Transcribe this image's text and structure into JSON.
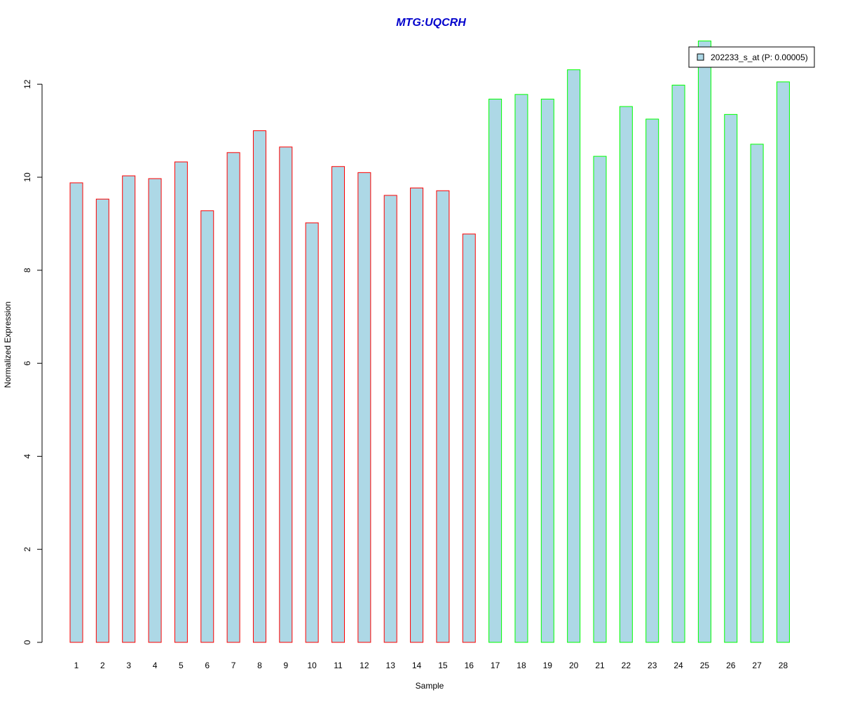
{
  "chart_data": {
    "type": "bar",
    "title": "MTG:UQCRH",
    "xlabel": "Sample",
    "ylabel": "Normalized Expression",
    "categories": [
      "1",
      "2",
      "3",
      "4",
      "5",
      "6",
      "7",
      "8",
      "9",
      "10",
      "11",
      "12",
      "13",
      "14",
      "15",
      "16",
      "17",
      "18",
      "19",
      "20",
      "21",
      "22",
      "23",
      "24",
      "25",
      "26",
      "27",
      "28"
    ],
    "series": [
      {
        "name": "202233_s_at (P: 0.00005)",
        "values": [
          9.88,
          9.53,
          10.03,
          9.97,
          10.33,
          9.28,
          10.53,
          11.0,
          10.65,
          9.02,
          10.23,
          10.1,
          9.61,
          9.77,
          9.71,
          8.78,
          11.68,
          11.78,
          11.68,
          12.31,
          10.45,
          11.52,
          11.25,
          11.98,
          12.93,
          11.35,
          10.71,
          12.05
        ],
        "group": [
          "red",
          "red",
          "red",
          "red",
          "red",
          "red",
          "red",
          "red",
          "red",
          "red",
          "red",
          "red",
          "red",
          "red",
          "red",
          "red",
          "green",
          "green",
          "green",
          "green",
          "green",
          "green",
          "green",
          "green",
          "green",
          "green",
          "green",
          "green"
        ]
      }
    ],
    "ylim": [
      0,
      12.93
    ],
    "yticks": [
      0,
      2,
      4,
      6,
      8,
      10,
      12
    ],
    "grid": false,
    "legend": "top-right",
    "colors": {
      "title": "#0000cc",
      "bar_fill": "#add8e6",
      "border_group_red": "#ff0000",
      "border_group_green": "#00ff00",
      "axis": "#000000"
    }
  }
}
